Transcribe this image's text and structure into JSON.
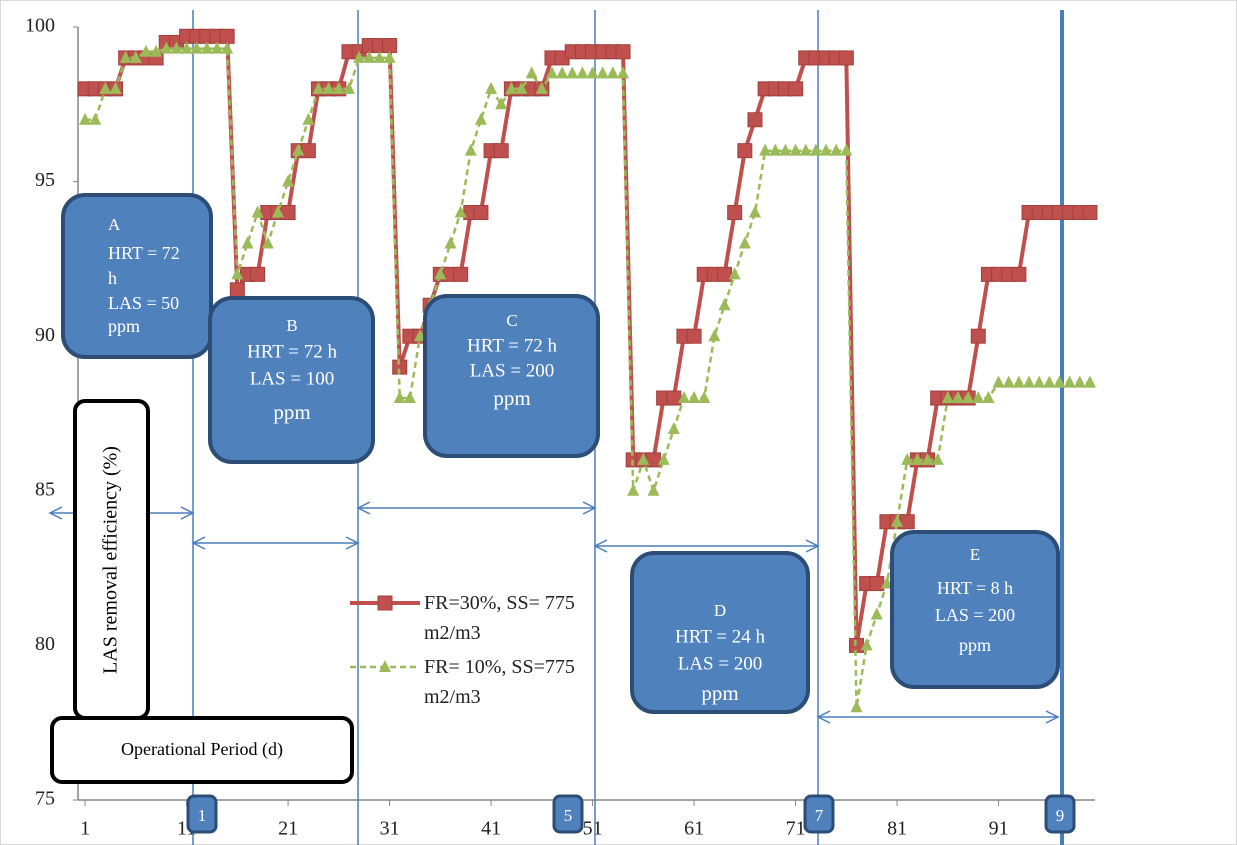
{
  "chart_data": {
    "type": "line",
    "y_label": "LAS removal efficiency (%)",
    "x_label": "Operational Period (d)",
    "x": [
      1,
      2,
      3,
      4,
      5,
      6,
      7,
      8,
      9,
      10,
      11,
      12,
      13,
      14,
      15,
      16,
      17,
      18,
      19,
      20,
      21,
      22,
      23,
      24,
      25,
      26,
      27,
      28,
      29,
      30,
      31,
      32,
      33,
      34,
      35,
      36,
      37,
      38,
      39,
      40,
      41,
      42,
      43,
      44,
      45,
      46,
      47,
      48,
      49,
      50,
      51,
      52,
      53,
      54,
      55,
      56,
      57,
      58,
      59,
      60,
      61,
      62,
      63,
      64,
      65,
      66,
      67,
      68,
      69,
      70,
      71,
      72,
      73,
      74,
      75,
      76,
      77,
      78,
      79,
      80,
      81,
      82,
      83,
      84,
      85,
      86,
      87,
      88,
      89,
      90,
      91,
      92,
      93,
      94,
      95,
      96,
      97,
      98,
      99,
      100
    ],
    "xlim": [
      0.5,
      100.5
    ],
    "xticks": [
      1,
      11,
      21,
      31,
      41,
      51,
      61,
      71,
      81,
      91
    ],
    "ylim": [
      75,
      100
    ],
    "yticks": [
      75,
      80,
      85,
      90,
      95,
      100
    ],
    "grid": false,
    "series": [
      {
        "name": "FR=30%, SS= 775 m2/m3",
        "color": "#c0504d",
        "marker": "square",
        "dash": false,
        "values": [
          98,
          98,
          98,
          98,
          99,
          99,
          99,
          99,
          99.5,
          99.5,
          99.7,
          99.7,
          99.7,
          99.7,
          99.7,
          91.5,
          92,
          92,
          94,
          94,
          94,
          96,
          96,
          98,
          98,
          98,
          99.2,
          99.2,
          99.4,
          99.4,
          99.4,
          89,
          90,
          90,
          91,
          92,
          92,
          92,
          94,
          94,
          96,
          96,
          98,
          98,
          98,
          98,
          99,
          99,
          99.2,
          99.2,
          99.2,
          99.2,
          99.2,
          99.2,
          86,
          86,
          86,
          88,
          88,
          90,
          90,
          92,
          92,
          92,
          94,
          96,
          97,
          98,
          98,
          98,
          98,
          99,
          99,
          99,
          99,
          99,
          80,
          82,
          82,
          84,
          84,
          84,
          86,
          86,
          88,
          88,
          88,
          88,
          90,
          92,
          92,
          92,
          92,
          94,
          94,
          94,
          94,
          94,
          94,
          94
        ]
      },
      {
        "name": "FR= 10%, SS=775 m2/m3",
        "color": "#9bbb59",
        "marker": "triangle",
        "dash": true,
        "values": [
          97,
          97,
          98,
          98,
          99,
          99,
          99.2,
          99.2,
          99.3,
          99.3,
          99.3,
          99.3,
          99.3,
          99.3,
          99.3,
          92,
          93,
          94,
          93,
          94,
          95,
          96,
          97,
          98,
          98,
          98,
          98,
          99,
          99,
          99,
          99,
          88,
          88,
          90,
          91,
          92,
          93,
          94,
          96,
          97,
          98,
          97.5,
          98,
          98,
          98.5,
          98,
          98.5,
          98.5,
          98.5,
          98.5,
          98.5,
          98.5,
          98.5,
          98.5,
          85,
          86,
          85,
          86,
          87,
          88,
          88,
          88,
          90,
          91,
          92,
          93,
          94,
          96,
          96,
          96,
          96,
          96,
          96,
          96,
          96,
          96,
          78,
          80,
          81,
          82,
          84,
          86,
          86,
          86,
          86,
          88,
          88,
          88,
          88,
          88,
          88.5,
          88.5,
          88.5,
          88.5,
          88.5,
          88.5,
          88.5,
          88.5,
          88.5,
          88.5
        ]
      }
    ],
    "phases": [
      {
        "lines": [
          "A",
          "HRT = 72",
          "h",
          "LAS = 50",
          "ppm"
        ]
      },
      {
        "lines": [
          "B",
          "HRT = 72 h",
          "LAS = 100",
          "ppm"
        ]
      },
      {
        "lines": [
          "C",
          "HRT = 72 h",
          "LAS = 200",
          "ppm"
        ]
      },
      {
        "lines": [
          "D",
          "HRT = 24 h",
          "LAS = 200",
          "ppm"
        ]
      },
      {
        "lines": [
          "E",
          "HRT = 8 h",
          "LAS = 200",
          "ppm"
        ]
      }
    ],
    "period_markers": [
      "1",
      "5",
      "7",
      "9"
    ]
  }
}
